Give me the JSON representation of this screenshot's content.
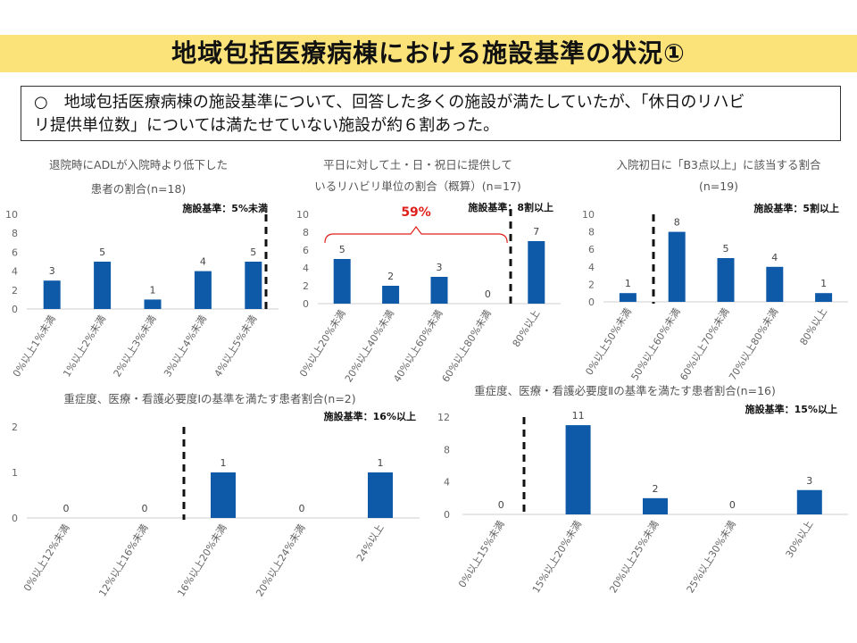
{
  "title": "地域包括医療病棟における施設基準の状況①",
  "summary": {
    "mark": "○",
    "line1": "地域包括医療病棟の施設基準について、回答した多くの施設が満たしていたが、「休日のリハビ",
    "line2": "リ提供単位数」については満たせていない施設が約６割あった。"
  },
  "chart_data": [
    {
      "type": "bar",
      "title_lines": [
        "退院時にADLが入院時より低下した",
        "患者の割合(n=18)"
      ],
      "criterion": "施設基準：5%未満",
      "categories": [
        "0%以上1%未満",
        "1%以上2%未満",
        "2%以上3%未満",
        "3%以上4%未満",
        "4%以上5%未満"
      ],
      "values": [
        3,
        5,
        1,
        4,
        5
      ],
      "ylim": [
        0,
        10
      ],
      "yticks": [
        0,
        2,
        4,
        6,
        8,
        10
      ],
      "threshold_after_index": 4
    },
    {
      "type": "bar",
      "title_lines": [
        "平日に対して土・日・祝日に提供して",
        "いるリハビリ単位の割合（概算）(n=17)"
      ],
      "criterion": "施設基準：8割以上",
      "categories": [
        "0%以上20%未満",
        "20%以上40%未満",
        "40%以上60%未満",
        "60%以上80%未満",
        "80%以上"
      ],
      "values": [
        5,
        2,
        3,
        0,
        7
      ],
      "ylim": [
        0,
        10
      ],
      "yticks": [
        0,
        2,
        4,
        6,
        8,
        10
      ],
      "threshold_after_index": 3,
      "callout": "59%"
    },
    {
      "type": "bar",
      "title_lines": [
        "入院初日に「B3点以上」に該当する割合",
        "(n=19)"
      ],
      "criterion": "施設基準：5割以上",
      "categories": [
        "0%以上50%未満",
        "50%以上60%未満",
        "60%以上70%未満",
        "70%以上80%未満",
        "80%以上"
      ],
      "values": [
        1,
        8,
        5,
        4,
        1
      ],
      "ylim": [
        0,
        10
      ],
      "yticks": [
        0,
        2,
        4,
        6,
        8,
        10
      ],
      "threshold_after_index": 0
    },
    {
      "type": "bar",
      "title_lines": [
        "重症度、医療・看護必要度Ⅰの基準を満たす患者割合(n=2)"
      ],
      "criterion": "施設基準：16%以上",
      "categories": [
        "0%以上12%未満",
        "12%以上16%未満",
        "16%以上20%未満",
        "20%以上24%未満",
        "24%以上"
      ],
      "values": [
        0,
        0,
        1,
        0,
        1
      ],
      "ylim": [
        0,
        2
      ],
      "yticks": [
        0,
        1,
        2
      ],
      "threshold_after_index": 1
    },
    {
      "type": "bar",
      "title_lines": [
        "重症度、医療・看護必要度Ⅱの基準を満たす患者割合(n=16)"
      ],
      "criterion": "施設基準：15%以上",
      "categories": [
        "0%以上15%未満",
        "15%以上20%未満",
        "20%以上25%未満",
        "25%以上30%未満",
        "30%以上"
      ],
      "values": [
        0,
        11,
        2,
        0,
        3
      ],
      "ylim": [
        0,
        12
      ],
      "yticks": [
        0,
        4,
        8,
        12
      ],
      "threshold_after_index": 0
    }
  ],
  "colors": {
    "bar": "#0f5aa8",
    "title_band": "#fbe37a",
    "callout": "#e0201a"
  }
}
